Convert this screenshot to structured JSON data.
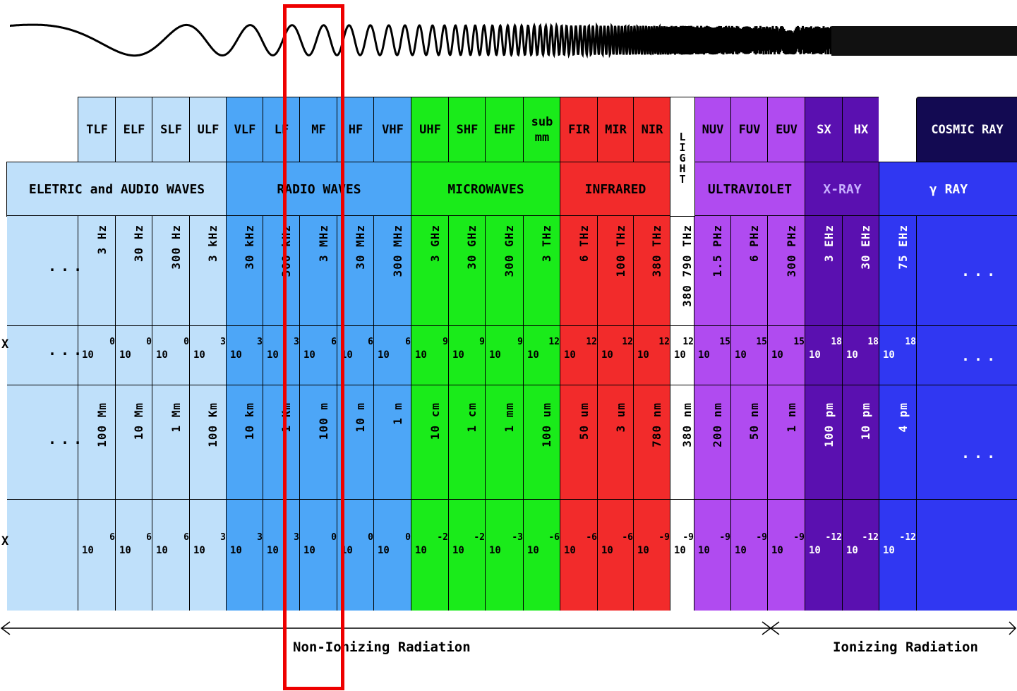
{
  "colors": {
    "electric": "#bfe0fa",
    "radio": "#4da6f7",
    "micro": "#1aeb1a",
    "infrared": "#f22b2b",
    "light": "#ffffff",
    "uv": "#b04bf0",
    "xray": "#5a10b0",
    "gamma": "#3037f2",
    "cosmic": "#130a52",
    "highlight": "#ee0000"
  },
  "bands": [
    "TLF",
    "ELF",
    "SLF",
    "ULF",
    "VLF",
    "LF",
    "MF",
    "HF",
    "VHF",
    "UHF",
    "SHF",
    "EHF",
    "sub mm",
    "FIR",
    "MIR",
    "NIR",
    "LIGHT",
    "NUV",
    "FUV",
    "EUV",
    "SX",
    "HX",
    "",
    "COSMIC RAY"
  ],
  "categories": [
    "ELETRIC and AUDIO WAVES",
    "RADIO WAVES",
    "MICROWAVES",
    "INFRARED",
    "LIGHT",
    "ULTRAVIOLET",
    "X-RAY",
    "γ RAY"
  ],
  "frequencies": [
    "3 Hz",
    "30 Hz",
    "300 Hz",
    "3 kHz",
    "30 kHz",
    "300 kHz",
    "3 MHz",
    "30 MHz",
    "300 MHz",
    "3 GHz",
    "30 GHz",
    "300 GHz",
    "3 THz",
    "6 THz",
    "100 THz",
    "380 THz",
    "380 790 THz",
    "1.5 PHz",
    "6 PHz",
    "300 PHz",
    "3 EHz",
    "30 EHz",
    "75 EHz"
  ],
  "freq_exponents": [
    "0",
    "0",
    "0",
    "3",
    "3",
    "3",
    "6",
    "6",
    "6",
    "9",
    "9",
    "9",
    "12",
    "12",
    "12",
    "12",
    "12",
    "15",
    "15",
    "15",
    "18",
    "18",
    "18"
  ],
  "wavelengths": [
    "100 Mm",
    "10 Mm",
    "1 Mm",
    "100 Km",
    "10 km",
    "1 Km",
    "100 m",
    "10 m",
    "1 m",
    "10 cm",
    "1 cm",
    "1 mm",
    "100 um",
    "50 um",
    "3 um",
    "780 nm",
    "380 nm",
    "200 nm",
    "50 nm",
    "1 nm",
    "100 pm",
    "10 pm",
    "4 pm"
  ],
  "wave_exponents": [
    "6",
    "6",
    "6",
    "3",
    "3",
    "3",
    "0",
    "0",
    "0",
    "-2",
    "-2",
    "-3",
    "-6",
    "-6",
    "-6",
    "-9",
    "-9",
    "-9",
    "-9",
    "-9",
    "-12",
    "-12",
    "-12"
  ],
  "base": "10",
  "ellipsis": "...",
  "x_marker": "X",
  "non_ionizing": "Non-Ionizing Radiation",
  "ionizing": "Ionizing Radiation"
}
